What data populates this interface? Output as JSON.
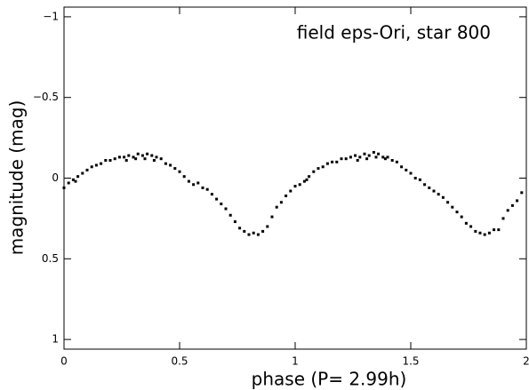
{
  "chart_data": {
    "type": "scatter",
    "annotation": "field eps-Ori, star 800",
    "x_label": "phase (P= 2.99h)",
    "y_label": "magnitude (mag)",
    "color": "#000000",
    "xlim": [
      0,
      2
    ],
    "ylim": [
      1.06,
      -1.06
    ],
    "xticks": [
      0,
      0.5,
      1,
      1.5,
      2
    ],
    "yticks": [
      {
        "value": -1,
        "label": "−1"
      },
      {
        "value": -0.5,
        "label": "−0.5"
      },
      0,
      0.5,
      1
    ],
    "x": [
      0.0,
      0.02,
      0.04,
      0.06,
      0.08,
      0.1,
      0.12,
      0.14,
      0.16,
      0.18,
      0.2,
      0.22,
      0.24,
      0.26,
      0.28,
      0.3,
      0.32,
      0.34,
      0.36,
      0.38,
      0.4,
      0.42,
      0.44,
      0.46,
      0.48,
      0.5,
      0.52,
      0.54,
      0.56,
      0.58,
      0.6,
      0.62,
      0.64,
      0.66,
      0.68,
      0.7,
      0.72,
      0.74,
      0.76,
      0.78,
      0.8,
      0.82,
      0.84,
      0.86,
      0.88,
      0.9,
      0.92,
      0.94,
      0.96,
      0.98,
      1.0,
      1.02,
      1.04,
      1.06,
      1.08,
      1.1,
      1.12,
      1.14,
      1.16,
      1.18,
      1.2,
      1.22,
      1.24,
      1.26,
      1.28,
      1.3,
      1.32,
      1.34,
      1.36,
      1.38,
      1.4,
      1.42,
      1.44,
      1.46,
      1.48,
      1.5,
      1.52,
      1.54,
      1.56,
      1.58,
      1.6,
      1.62,
      1.64,
      1.66,
      1.68,
      1.7,
      1.72,
      1.74,
      1.76,
      1.78,
      1.8,
      1.82,
      1.84,
      1.86,
      1.88,
      1.9,
      1.92,
      1.94,
      1.96,
      1.98,
      0.27,
      0.31,
      0.35,
      0.39,
      1.27,
      1.31,
      1.35,
      1.39,
      0.05,
      1.05
    ],
    "values": [
      0.06,
      0.03,
      0.01,
      -0.01,
      -0.03,
      -0.05,
      -0.07,
      -0.08,
      -0.09,
      -0.11,
      -0.11,
      -0.12,
      -0.13,
      -0.13,
      -0.14,
      -0.13,
      -0.15,
      -0.14,
      -0.15,
      -0.14,
      -0.13,
      -0.12,
      -0.09,
      -0.08,
      -0.06,
      -0.04,
      -0.01,
      0.02,
      0.04,
      0.03,
      0.06,
      0.07,
      0.1,
      0.13,
      0.16,
      0.19,
      0.23,
      0.27,
      0.31,
      0.33,
      0.35,
      0.34,
      0.35,
      0.33,
      0.3,
      0.24,
      0.18,
      0.15,
      0.11,
      0.08,
      0.05,
      0.04,
      0.02,
      -0.01,
      -0.04,
      -0.06,
      -0.07,
      -0.09,
      -0.1,
      -0.1,
      -0.12,
      -0.12,
      -0.13,
      -0.14,
      -0.13,
      -0.15,
      -0.14,
      -0.16,
      -0.15,
      -0.13,
      -0.13,
      -0.11,
      -0.1,
      -0.07,
      -0.05,
      -0.03,
      0.0,
      0.01,
      0.04,
      0.06,
      0.08,
      0.1,
      0.12,
      0.15,
      0.18,
      0.21,
      0.24,
      0.28,
      0.3,
      0.33,
      0.34,
      0.35,
      0.34,
      0.32,
      0.32,
      0.25,
      0.2,
      0.17,
      0.14,
      0.09,
      -0.11,
      -0.12,
      -0.12,
      -0.11,
      -0.11,
      -0.12,
      -0.13,
      -0.12,
      0.02,
      0.01
    ]
  }
}
